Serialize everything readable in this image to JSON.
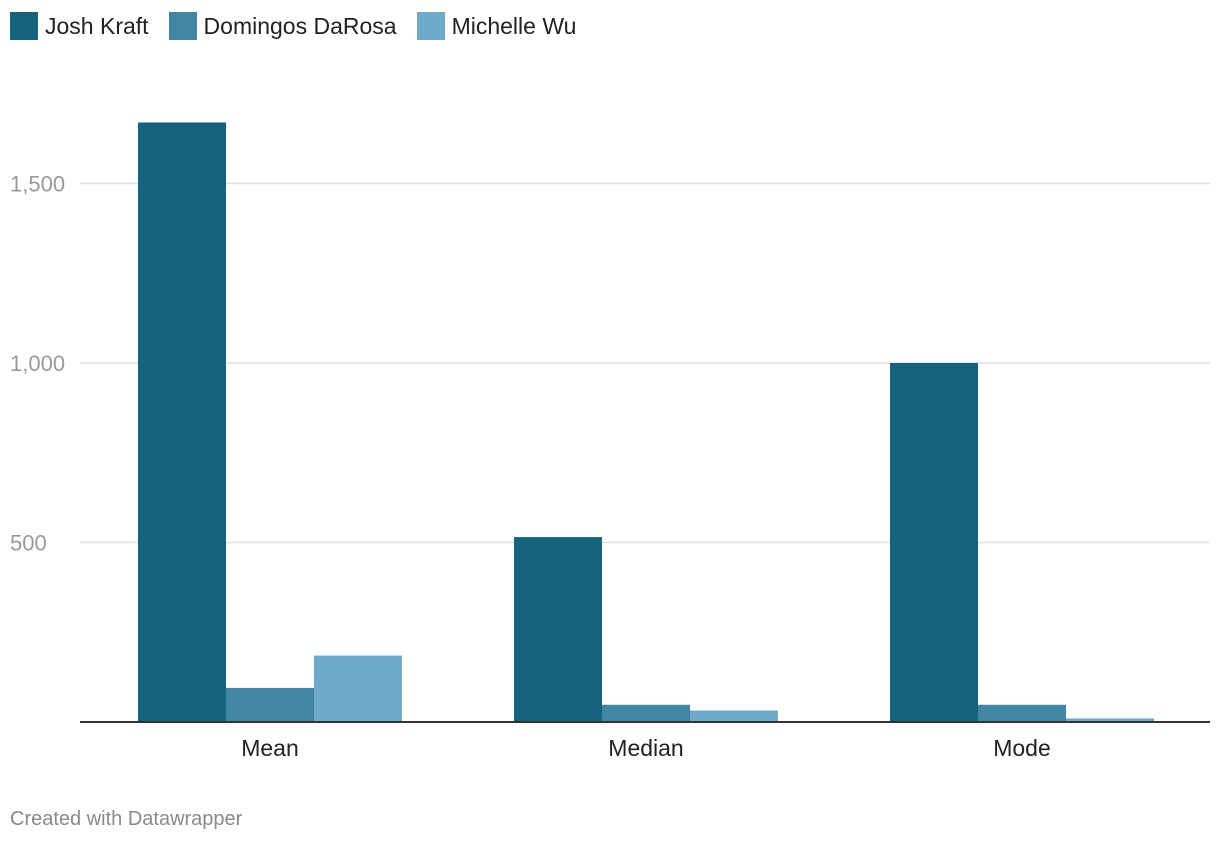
{
  "chart_data": {
    "type": "bar",
    "categories": [
      "Mean",
      "Median",
      "Mode"
    ],
    "series": [
      {
        "name": "Josh Kraft",
        "color": "#17627d",
        "values": [
          1670,
          515,
          1000
        ]
      },
      {
        "name": "Domingos DaRosa",
        "color": "#4285a3",
        "values": [
          95,
          48,
          48
        ]
      },
      {
        "name": "Michelle Wu",
        "color": "#6eabc8",
        "values": [
          185,
          32,
          10
        ]
      }
    ],
    "ylim": [
      0,
      1750
    ],
    "yticks": [
      500,
      1000,
      1500
    ],
    "ytick_labels": [
      "500",
      "1,000",
      "1,500"
    ],
    "grid": true,
    "legend_position": "top-left",
    "xlabel": "",
    "ylabel": ""
  },
  "footer": {
    "credit": "Created with Datawrapper"
  }
}
